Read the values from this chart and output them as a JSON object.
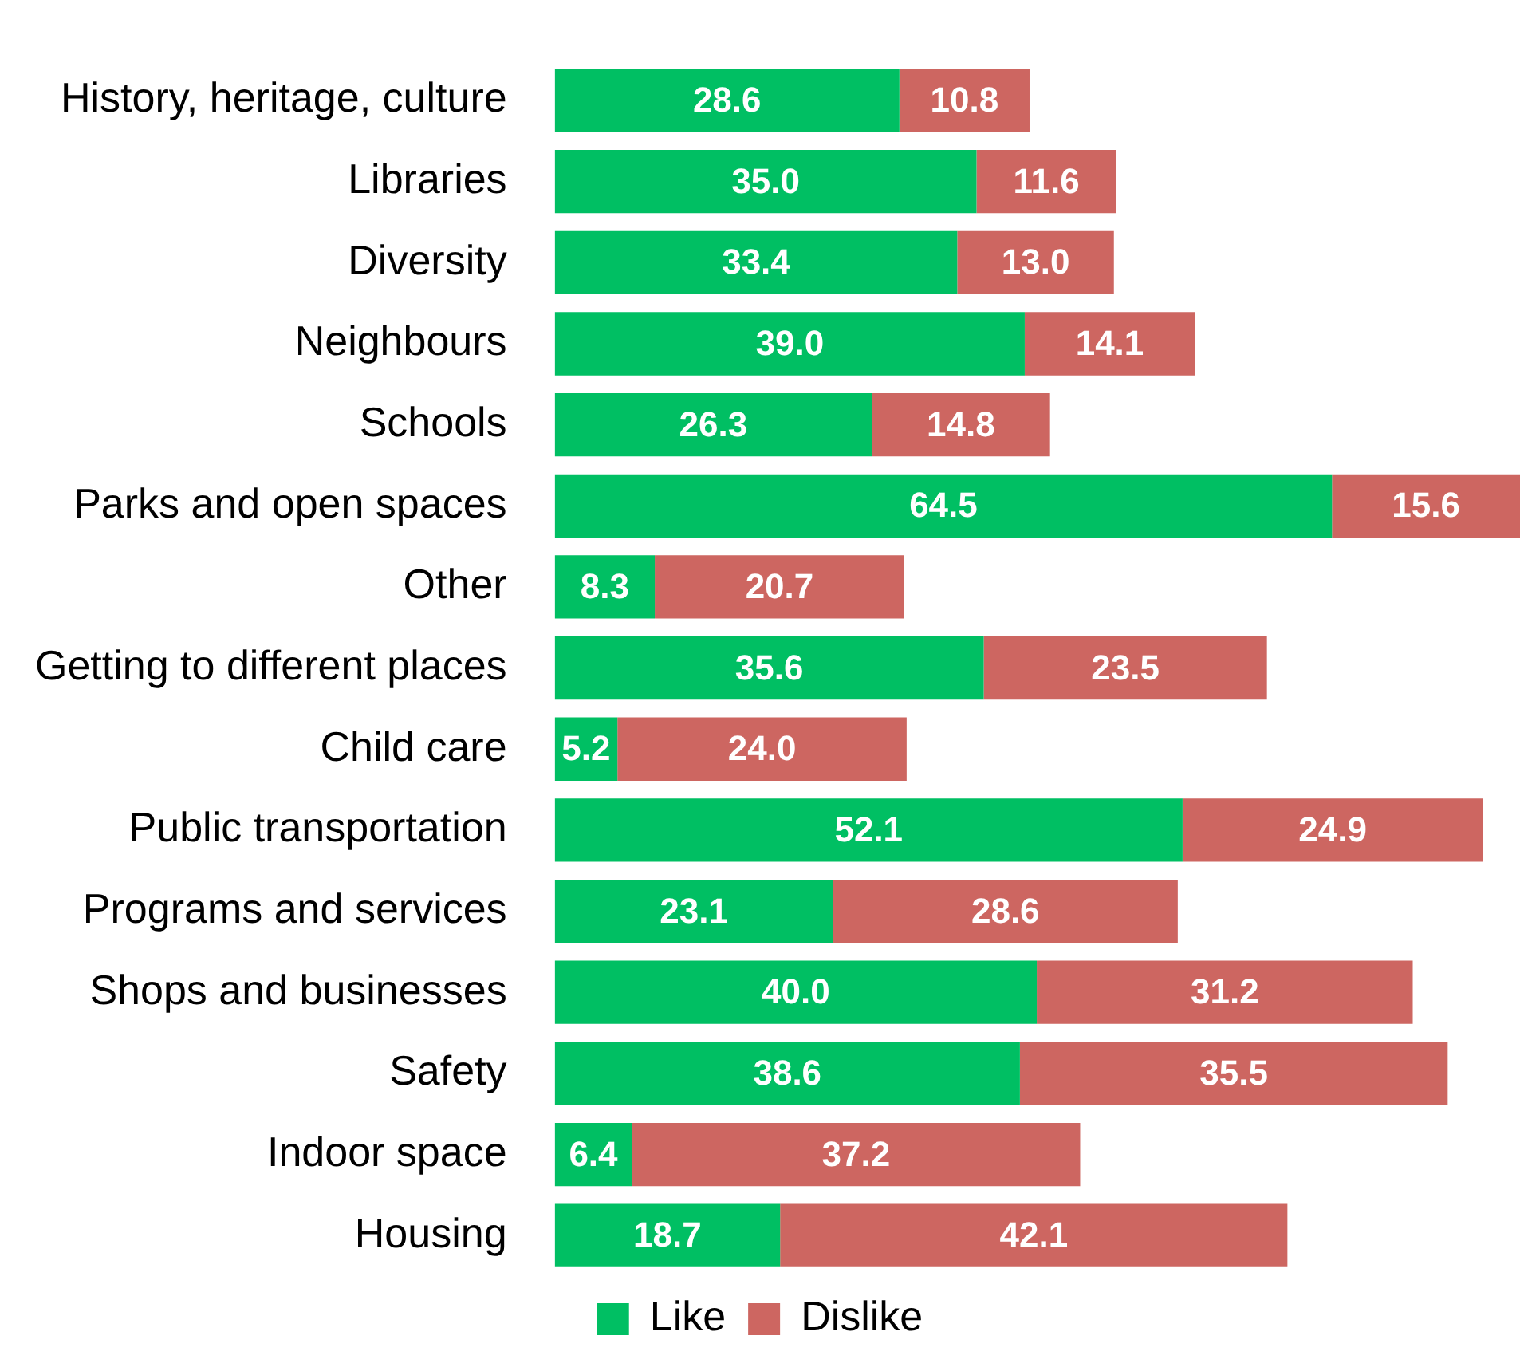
{
  "chart_data": {
    "type": "bar",
    "orientation": "horizontal",
    "stacked": true,
    "legend": "bottom",
    "grid": false,
    "tick_labels": "y",
    "categories": [
      "History, heritage, culture",
      "Libraries",
      "Diversity",
      "Neighbours",
      "Schools",
      "Parks and open spaces",
      "Other",
      "Getting to different places",
      "Child care",
      "Public transportation",
      "Programs and services",
      "Shops and businesses",
      "Safety",
      "Indoor space",
      "Housing"
    ],
    "series": [
      {
        "name": "Like",
        "color": "#00bf63",
        "values": [
          28.6,
          35.0,
          33.4,
          39.0,
          26.3,
          64.5,
          8.3,
          35.6,
          5.2,
          52.1,
          23.1,
          40.0,
          38.6,
          6.4,
          18.7
        ],
        "value_labels": [
          "28.6",
          "35.0",
          "33.4",
          "39.0",
          "26.3",
          "64.5",
          "8.3",
          "35.6",
          "5.2",
          "52.1",
          "23.1",
          "40.0",
          "38.6",
          "6.4",
          "18.7"
        ]
      },
      {
        "name": "Dislike",
        "color": "#cd6661",
        "values": [
          10.8,
          11.6,
          13.0,
          14.1,
          14.8,
          15.6,
          20.7,
          23.5,
          24.0,
          24.9,
          28.6,
          31.2,
          35.5,
          37.2,
          42.1
        ],
        "value_labels": [
          "10.8",
          "11.6",
          "13.0",
          "14.1",
          "14.8",
          "15.6",
          "20.7",
          "23.5",
          "24.0",
          "24.9",
          "28.6",
          "31.2",
          "35.5",
          "37.2",
          "42.1"
        ]
      }
    ]
  }
}
